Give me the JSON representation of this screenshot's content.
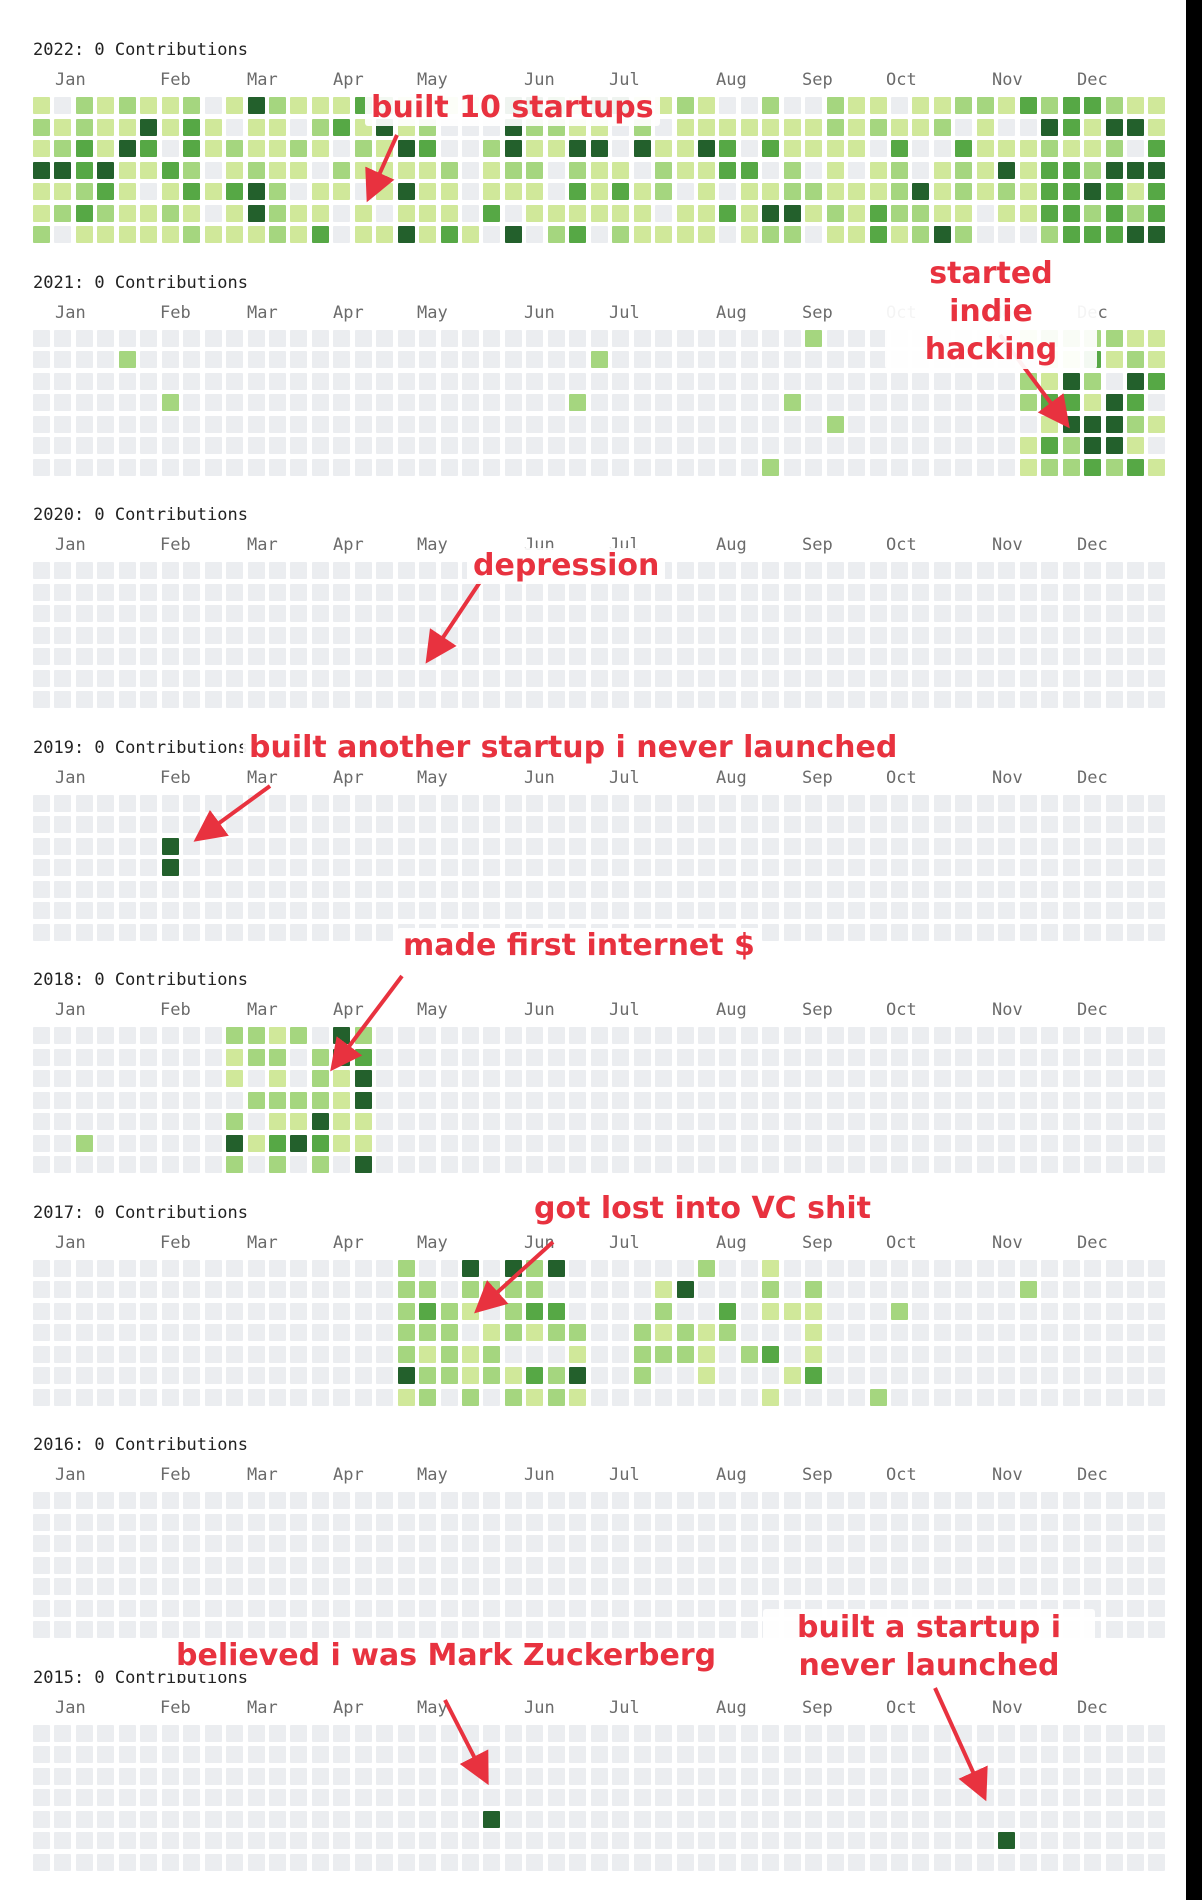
{
  "colors": {
    "empty": "#ebedf0",
    "l1": "#d0e89a",
    "l2": "#a5d67f",
    "l3": "#56a845",
    "l4": "#23602c",
    "accent": "#e8323f"
  },
  "years": [
    {
      "title": "2022: 0 Contributions",
      "months": [
        "Jan",
        "Feb",
        "Mar",
        "Apr",
        "May",
        "Jun",
        "Jul",
        "Aug",
        "Sep",
        "Oct",
        "Nov",
        "Dec"
      ],
      "activity": "high"
    },
    {
      "title": "2021: 0 Contributions",
      "months": [
        "Jan",
        "Feb",
        "Mar",
        "Apr",
        "May",
        "Jun",
        "Jul",
        "Aug",
        "Sep",
        "Oct",
        "Nov",
        "Dec"
      ],
      "activity": "late"
    },
    {
      "title": "2020: 0 Contributions",
      "months": [
        "Jan",
        "Feb",
        "Mar",
        "Apr",
        "May",
        "Jun",
        "Jul",
        "Aug",
        "Sep",
        "Oct",
        "Nov",
        "Dec"
      ],
      "activity": "none"
    },
    {
      "title": "2019: 0 Contributions",
      "months": [
        "Jan",
        "Feb",
        "Mar",
        "Apr",
        "May",
        "Jun",
        "Jul",
        "Aug",
        "Sep",
        "Oct",
        "Nov",
        "Dec"
      ],
      "activity": "feb"
    },
    {
      "title": "2018: 0 Contributions",
      "months": [
        "Jan",
        "Feb",
        "Mar",
        "Apr",
        "May",
        "Jun",
        "Jul",
        "Aug",
        "Sep",
        "Oct",
        "Nov",
        "Dec"
      ],
      "activity": "spring"
    },
    {
      "title": "2017: 0 Contributions",
      "months": [
        "Jan",
        "Feb",
        "Mar",
        "Apr",
        "May",
        "Jun",
        "Jul",
        "Aug",
        "Sep",
        "Oct",
        "Nov",
        "Dec"
      ],
      "activity": "summer"
    },
    {
      "title": "2016: 0 Contributions",
      "months": [
        "Jan",
        "Feb",
        "Mar",
        "Apr",
        "May",
        "Jun",
        "Jul",
        "Aug",
        "Sep",
        "Oct",
        "Nov",
        "Dec"
      ],
      "activity": "none"
    },
    {
      "title": "2015: 0 Contributions",
      "months": [
        "Jan",
        "Feb",
        "Mar",
        "Apr",
        "May",
        "Jun",
        "Jul",
        "Aug",
        "Sep",
        "Oct",
        "Nov",
        "Dec"
      ],
      "activity": "two"
    }
  ],
  "annotations": {
    "a2022": "built 10 startups",
    "a2021": "started indie hacking",
    "a2020": "depression",
    "a2019": "built  another startup i never launched",
    "a2018": "made first internet $",
    "a2017": "got lost into VC shit",
    "a2015a": "believed i was Mark Zuckerberg",
    "a2015b": "built a startup i never launched"
  }
}
